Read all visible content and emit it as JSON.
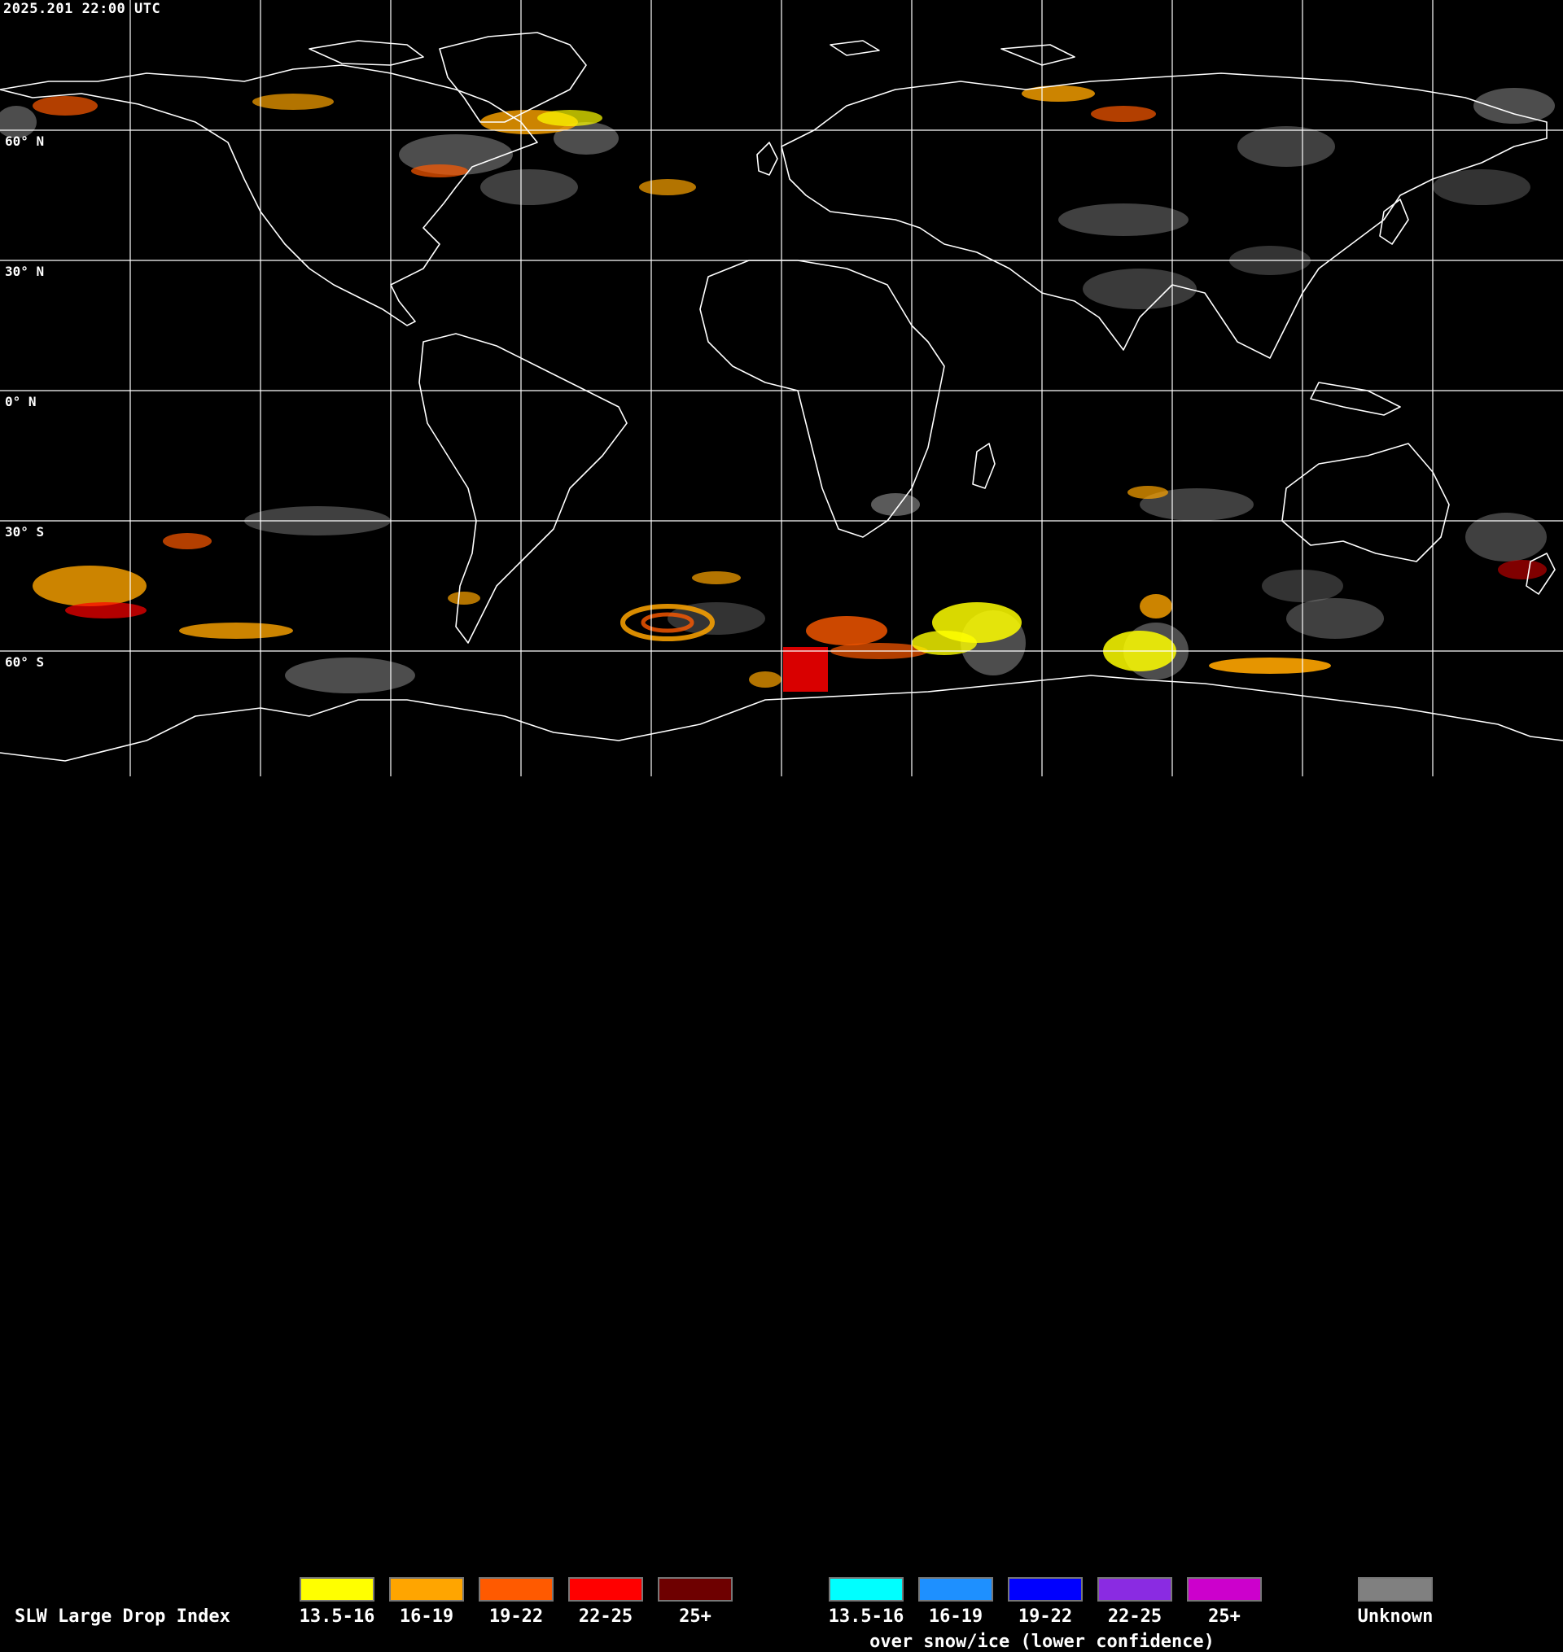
{
  "header": {
    "timestamp": "2025.201 22:00 UTC"
  },
  "map": {
    "background_color": "#000000",
    "grid_color": "#ffffff",
    "coast_color": "#ffffff",
    "latitude_labels": [
      {
        "id": "60n",
        "text": "60° N"
      },
      {
        "id": "30n",
        "text": "30° N"
      },
      {
        "id": "0n",
        "text": "0° N"
      },
      {
        "id": "30s",
        "text": "30° S"
      },
      {
        "id": "60s",
        "text": "60° S"
      }
    ]
  },
  "legend": {
    "title": "SLW Large Drop Index",
    "primary": [
      {
        "label": "13.5-16",
        "color": "#ffff00"
      },
      {
        "label": "16-19",
        "color": "#ffa500"
      },
      {
        "label": "19-22",
        "color": "#ff5a00"
      },
      {
        "label": "22-25",
        "color": "#ff0000"
      },
      {
        "label": "25+",
        "color": "#6e0000"
      }
    ],
    "snow_ice": [
      {
        "label": "13.5-16",
        "color": "#00ffff"
      },
      {
        "label": "16-19",
        "color": "#1e90ff"
      },
      {
        "label": "19-22",
        "color": "#0000ff"
      },
      {
        "label": "22-25",
        "color": "#8a2be2"
      },
      {
        "label": "25+",
        "color": "#cc00cc"
      }
    ],
    "snow_ice_caption": "over snow/ice (lower confidence)",
    "unknown": {
      "label": "Unknown",
      "color": "#808080"
    }
  }
}
